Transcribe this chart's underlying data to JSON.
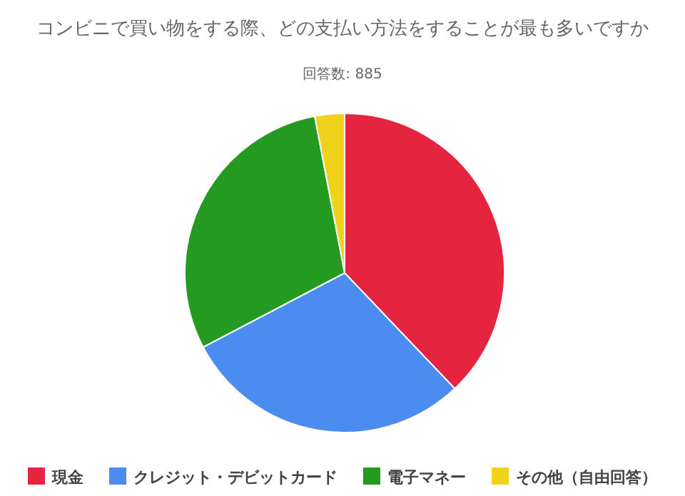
{
  "chart_data": {
    "type": "pie",
    "title": "コンビニで買い物をする際、どの支払い方法をすることが最も多いですか",
    "subtitle": "回答数: 885",
    "categories": [
      "現金",
      "クレジット・デビットカード",
      "電子マネー",
      "その他（自由回答）"
    ],
    "values": [
      37.9,
      29.4,
      29.7,
      3.0
    ],
    "colors": [
      "#e5253f",
      "#4a8cf0",
      "#259a20",
      "#f0d21a"
    ],
    "legend": "bottom"
  }
}
